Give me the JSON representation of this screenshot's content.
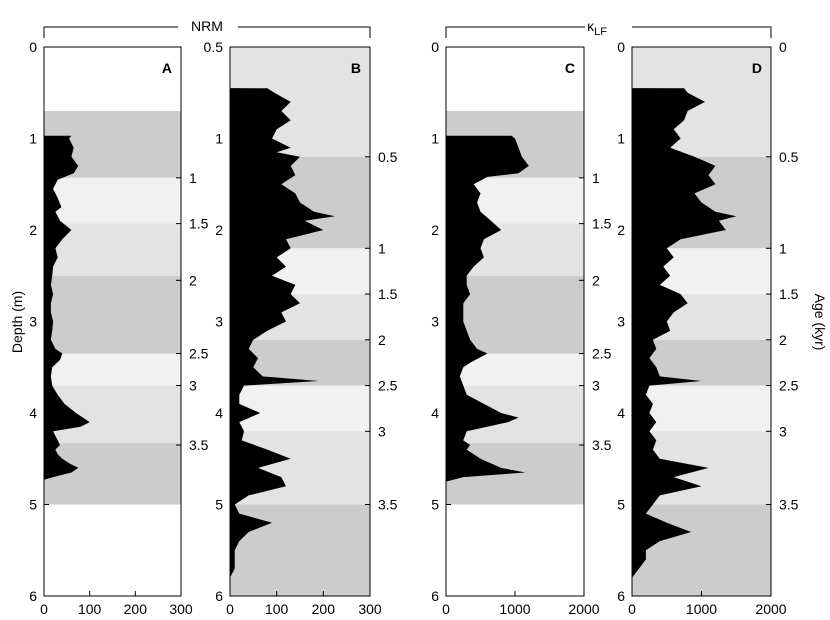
{
  "chart_data": {
    "type": "area",
    "colors": {
      "curve_fill": "#000000",
      "band_dark": "#cccccc",
      "band_mid": "#e3e3e3",
      "band_light": "#f1f1f1",
      "frame": "#000000"
    },
    "group_labels": {
      "nrm": {
        "text": "NRM",
        "panels": [
          "A",
          "B"
        ]
      },
      "klf": {
        "text": "κ",
        "subscript": "LF",
        "panels": [
          "C",
          "D"
        ]
      }
    },
    "left_axis_title": "Depth (m)",
    "right_axis_title": "Age (kyr)",
    "panels": [
      {
        "id": "A",
        "quantity": "NRM",
        "xlim": [
          0,
          300
        ],
        "xticks": [
          "0",
          "100",
          "200",
          "300"
        ],
        "xtick_values": [
          0,
          100,
          200,
          300
        ],
        "depth_ylim": [
          0,
          6
        ],
        "depth_ticks": [
          "0",
          "1",
          "2",
          "3",
          "4",
          "5",
          "6"
        ],
        "depth_tick_values": [
          0,
          1,
          2,
          3,
          4,
          5,
          6
        ],
        "age_ticks": [
          "1",
          "1.5",
          "2",
          "2.5",
          "3",
          "3.5"
        ],
        "age_tick_depths": [
          1.43,
          1.93,
          2.55,
          3.35,
          3.7,
          4.35
        ],
        "bands": [
          {
            "from": 0.7,
            "to": 1.43,
            "shade": "dark"
          },
          {
            "from": 1.43,
            "to": 1.93,
            "shade": "light"
          },
          {
            "from": 1.93,
            "to": 2.5,
            "shade": "mid"
          },
          {
            "from": 2.5,
            "to": 3.35,
            "shade": "dark"
          },
          {
            "from": 3.35,
            "to": 3.7,
            "shade": "light"
          },
          {
            "from": 3.7,
            "to": 4.33,
            "shade": "mid"
          },
          {
            "from": 4.33,
            "to": 5.0,
            "shade": "dark"
          }
        ],
        "curve": {
          "depth": [
            0.97,
            1.0,
            1.1,
            1.2,
            1.3,
            1.38,
            1.45,
            1.55,
            1.65,
            1.75,
            1.8,
            1.9,
            2.0,
            2.1,
            2.2,
            2.3,
            2.4,
            2.5,
            2.6,
            2.7,
            2.8,
            2.9,
            3.0,
            3.1,
            3.2,
            3.3,
            3.35,
            3.42,
            3.5,
            3.6,
            3.7,
            3.8,
            3.9,
            4.0,
            4.1,
            4.15,
            4.2,
            4.25,
            4.3,
            4.35,
            4.4,
            4.45,
            4.5,
            4.55,
            4.6,
            4.65,
            4.7,
            4.73
          ],
          "value": [
            60,
            55,
            65,
            60,
            75,
            65,
            30,
            20,
            30,
            38,
            25,
            35,
            60,
            40,
            25,
            30,
            20,
            18,
            15,
            20,
            15,
            15,
            20,
            18,
            15,
            25,
            40,
            35,
            18,
            15,
            18,
            30,
            45,
            70,
            100,
            80,
            20,
            25,
            30,
            35,
            25,
            30,
            40,
            55,
            75,
            60,
            20,
            0
          ]
        }
      },
      {
        "id": "B",
        "quantity": "NRM",
        "xlim": [
          0,
          300
        ],
        "xticks": [
          "0",
          "100",
          "200",
          "300"
        ],
        "xtick_values": [
          0,
          100,
          200,
          300
        ],
        "age_ylim": [
          0.5,
          6
        ],
        "left_ticks": [
          "0.5",
          "1",
          "1.5",
          "2",
          "2.5",
          "3",
          "3.5",
          "4",
          "4.5",
          "5",
          "5.5",
          "6"
        ],
        "left_tick_labels_shown": [
          "0.5",
          "1",
          "2",
          "3",
          "4",
          "5",
          "6"
        ],
        "left_tick_depths": [
          0.0,
          1.0,
          2.0,
          3.0,
          4.0,
          5.0,
          6.0
        ],
        "age_ticks": [
          "0.5",
          "1",
          "1.5",
          "2",
          "2.5",
          "3",
          "3.5"
        ],
        "age_tick_depths": [
          1.2,
          2.2,
          2.7,
          3.2,
          3.7,
          4.2,
          5.0
        ],
        "bands": [
          {
            "from": 0.0,
            "to": 1.2,
            "shade": "mid"
          },
          {
            "from": 1.2,
            "to": 2.2,
            "shade": "dark"
          },
          {
            "from": 2.2,
            "to": 2.7,
            "shade": "light"
          },
          {
            "from": 2.7,
            "to": 3.2,
            "shade": "mid"
          },
          {
            "from": 3.2,
            "to": 3.7,
            "shade": "dark"
          },
          {
            "from": 3.7,
            "to": 4.2,
            "shade": "light"
          },
          {
            "from": 4.2,
            "to": 5.0,
            "shade": "mid"
          },
          {
            "from": 5.0,
            "to": 6.0,
            "shade": "dark"
          }
        ],
        "curve": {
          "depth": [
            0.45,
            0.5,
            0.6,
            0.7,
            0.8,
            0.9,
            1.0,
            1.1,
            1.15,
            1.2,
            1.3,
            1.4,
            1.5,
            1.6,
            1.7,
            1.8,
            1.85,
            1.9,
            2.0,
            2.1,
            2.2,
            2.3,
            2.4,
            2.5,
            2.6,
            2.7,
            2.8,
            2.9,
            3.0,
            3.1,
            3.2,
            3.3,
            3.4,
            3.5,
            3.6,
            3.65,
            3.7,
            3.8,
            3.9,
            4.0,
            4.1,
            4.2,
            4.3,
            4.4,
            4.5,
            4.6,
            4.7,
            4.8,
            4.9,
            5.0,
            5.1,
            5.2,
            5.3,
            5.4,
            5.5,
            5.6,
            5.7,
            5.8
          ],
          "value": [
            80,
            95,
            130,
            110,
            130,
            100,
            90,
            130,
            100,
            150,
            130,
            140,
            110,
            140,
            150,
            180,
            225,
            160,
            200,
            120,
            130,
            100,
            120,
            90,
            140,
            130,
            150,
            110,
            120,
            80,
            50,
            40,
            60,
            50,
            70,
            190,
            30,
            20,
            20,
            65,
            20,
            30,
            25,
            80,
            130,
            60,
            110,
            120,
            40,
            10,
            20,
            90,
            40,
            20,
            10,
            10,
            10,
            0
          ]
        }
      },
      {
        "id": "C",
        "quantity": "κLF",
        "xlim": [
          0,
          2000
        ],
        "xticks": [
          "0",
          "1000",
          "2000"
        ],
        "xtick_values": [
          0,
          1000,
          2000
        ],
        "depth_ylim": [
          0,
          6
        ],
        "depth_ticks": [
          "0",
          "1",
          "2",
          "3",
          "4",
          "5",
          "6"
        ],
        "depth_tick_values": [
          0,
          1,
          2,
          3,
          4,
          5,
          6
        ],
        "age_ticks": [
          "1",
          "1.5",
          "2",
          "2.5",
          "3",
          "3.5"
        ],
        "age_tick_depths": [
          1.43,
          1.93,
          2.55,
          3.35,
          3.7,
          4.35
        ],
        "bands": [
          {
            "from": 0.7,
            "to": 1.43,
            "shade": "dark"
          },
          {
            "from": 1.43,
            "to": 1.93,
            "shade": "light"
          },
          {
            "from": 1.93,
            "to": 2.5,
            "shade": "mid"
          },
          {
            "from": 2.5,
            "to": 3.35,
            "shade": "dark"
          },
          {
            "from": 3.35,
            "to": 3.7,
            "shade": "light"
          },
          {
            "from": 3.7,
            "to": 4.33,
            "shade": "mid"
          },
          {
            "from": 4.33,
            "to": 5.0,
            "shade": "dark"
          }
        ],
        "curve": {
          "depth": [
            0.97,
            1.0,
            1.1,
            1.2,
            1.3,
            1.38,
            1.42,
            1.5,
            1.6,
            1.7,
            1.8,
            1.9,
            2.0,
            2.1,
            2.2,
            2.3,
            2.4,
            2.5,
            2.6,
            2.7,
            2.8,
            2.9,
            3.0,
            3.1,
            3.2,
            3.3,
            3.35,
            3.45,
            3.5,
            3.6,
            3.7,
            3.8,
            3.9,
            4.0,
            4.05,
            4.1,
            4.2,
            4.3,
            4.35,
            4.4,
            4.5,
            4.6,
            4.65,
            4.7,
            4.75
          ],
          "value": [
            950,
            1000,
            1050,
            1100,
            1200,
            1050,
            600,
            400,
            500,
            450,
            500,
            650,
            800,
            550,
            500,
            550,
            400,
            300,
            300,
            350,
            250,
            250,
            250,
            300,
            350,
            450,
            600,
            350,
            250,
            200,
            250,
            300,
            550,
            800,
            1050,
            900,
            300,
            250,
            350,
            300,
            500,
            800,
            1150,
            250,
            0
          ]
        }
      },
      {
        "id": "D",
        "quantity": "κLF",
        "xlim": [
          0,
          2000
        ],
        "xticks": [
          "0",
          "1000",
          "2000"
        ],
        "xtick_values": [
          0,
          1000,
          2000
        ],
        "age_ylim": [
          0.5,
          6
        ],
        "left_ticks": [
          "0",
          "1",
          "2",
          "3",
          "4",
          "5",
          "6"
        ],
        "left_tick_labels_shown": [
          "0",
          "1",
          "2",
          "3",
          "4",
          "5",
          "6"
        ],
        "left_tick_depths": [
          0.0,
          1.0,
          2.0,
          3.0,
          4.0,
          5.0,
          6.0
        ],
        "age_ticks": [
          "0",
          "0.5",
          "1",
          "1.5",
          "2",
          "2.5",
          "3",
          "3.5"
        ],
        "age_tick_depths": [
          0.0,
          1.2,
          2.2,
          2.7,
          3.2,
          3.7,
          4.2,
          5.0
        ],
        "bands": [
          {
            "from": 0.0,
            "to": 1.2,
            "shade": "mid"
          },
          {
            "from": 1.2,
            "to": 2.2,
            "shade": "dark"
          },
          {
            "from": 2.2,
            "to": 2.7,
            "shade": "light"
          },
          {
            "from": 2.7,
            "to": 3.2,
            "shade": "mid"
          },
          {
            "from": 3.2,
            "to": 3.7,
            "shade": "dark"
          },
          {
            "from": 3.7,
            "to": 4.2,
            "shade": "light"
          },
          {
            "from": 4.2,
            "to": 5.0,
            "shade": "mid"
          },
          {
            "from": 5.0,
            "to": 6.0,
            "shade": "dark"
          }
        ],
        "curve": {
          "depth": [
            0.45,
            0.5,
            0.6,
            0.7,
            0.8,
            0.9,
            1.0,
            1.1,
            1.2,
            1.3,
            1.4,
            1.5,
            1.6,
            1.7,
            1.8,
            1.85,
            1.9,
            2.0,
            2.1,
            2.2,
            2.3,
            2.4,
            2.5,
            2.6,
            2.7,
            2.8,
            2.9,
            3.0,
            3.1,
            3.2,
            3.3,
            3.4,
            3.5,
            3.6,
            3.65,
            3.7,
            3.8,
            3.9,
            4.0,
            4.1,
            4.2,
            4.3,
            4.4,
            4.5,
            4.6,
            4.7,
            4.8,
            4.9,
            5.0,
            5.1,
            5.2,
            5.3,
            5.4,
            5.5,
            5.6,
            5.7,
            5.8
          ],
          "value": [
            750,
            800,
            1050,
            800,
            750,
            600,
            700,
            550,
            900,
            1200,
            1100,
            1200,
            900,
            1000,
            1200,
            1500,
            1250,
            1350,
            700,
            500,
            600,
            450,
            550,
            400,
            700,
            800,
            600,
            500,
            550,
            300,
            350,
            250,
            350,
            400,
            1000,
            250,
            200,
            300,
            250,
            350,
            250,
            350,
            300,
            400,
            1100,
            600,
            1000,
            400,
            300,
            200,
            500,
            850,
            400,
            200,
            200,
            100,
            0
          ]
        }
      }
    ]
  }
}
